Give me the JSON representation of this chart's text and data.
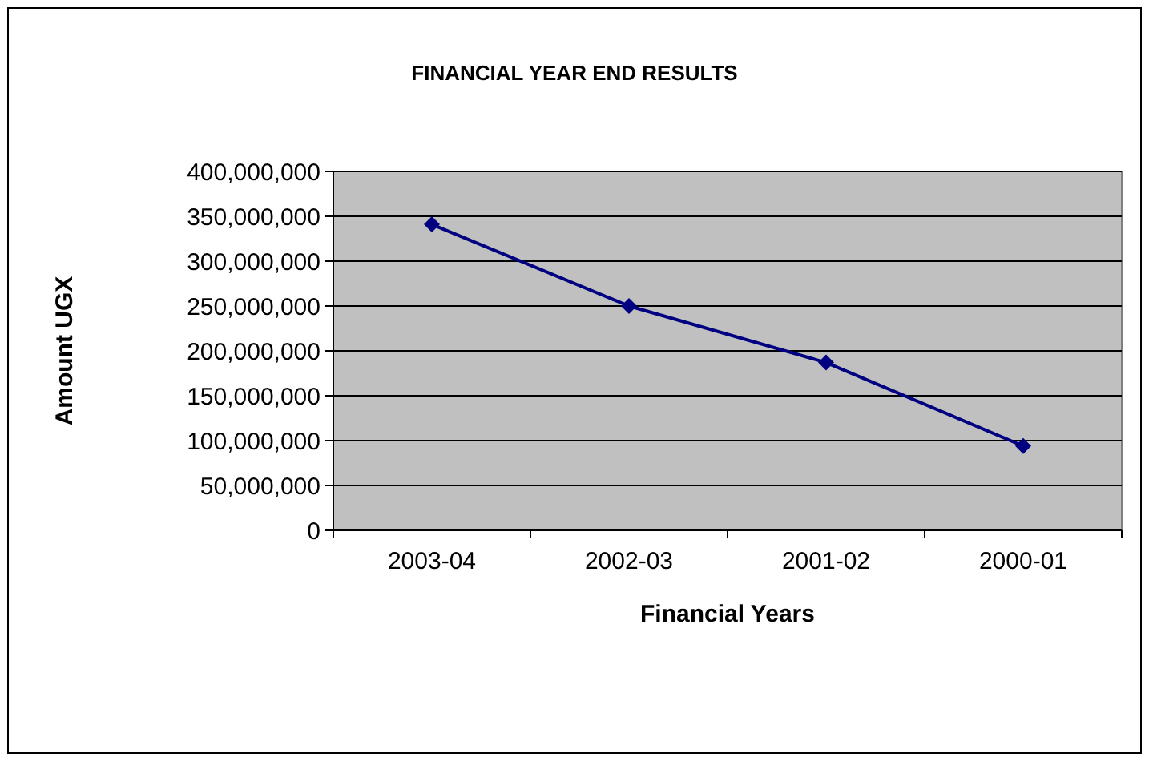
{
  "chart_data": {
    "type": "line",
    "title": "FINANCIAL YEAR END RESULTS",
    "xlabel": "Financial Years",
    "ylabel": "Amount UGX",
    "categories": [
      "2003-04",
      "2002-03",
      "2001-02",
      "2000-01"
    ],
    "series": [
      {
        "color": "#000080",
        "values": [
          341000000,
          250000000,
          187000000,
          94000000
        ]
      }
    ],
    "ylim": [
      0,
      400000000
    ],
    "yticks": [
      {
        "value": 0,
        "label": "0"
      },
      {
        "value": 50000000,
        "label": "50,000,000"
      },
      {
        "value": 100000000,
        "label": "100,000,000"
      },
      {
        "value": 150000000,
        "label": "150,000,000"
      },
      {
        "value": 200000000,
        "label": "200,000,000"
      },
      {
        "value": 250000000,
        "label": "250,000,000"
      },
      {
        "value": 300000000,
        "label": "300,000,000"
      },
      {
        "value": 350000000,
        "label": "350,000,000"
      },
      {
        "value": 400000000,
        "label": "400,000,000"
      }
    ],
    "grid": "y",
    "marker": "diamond",
    "line_style": "solid"
  }
}
